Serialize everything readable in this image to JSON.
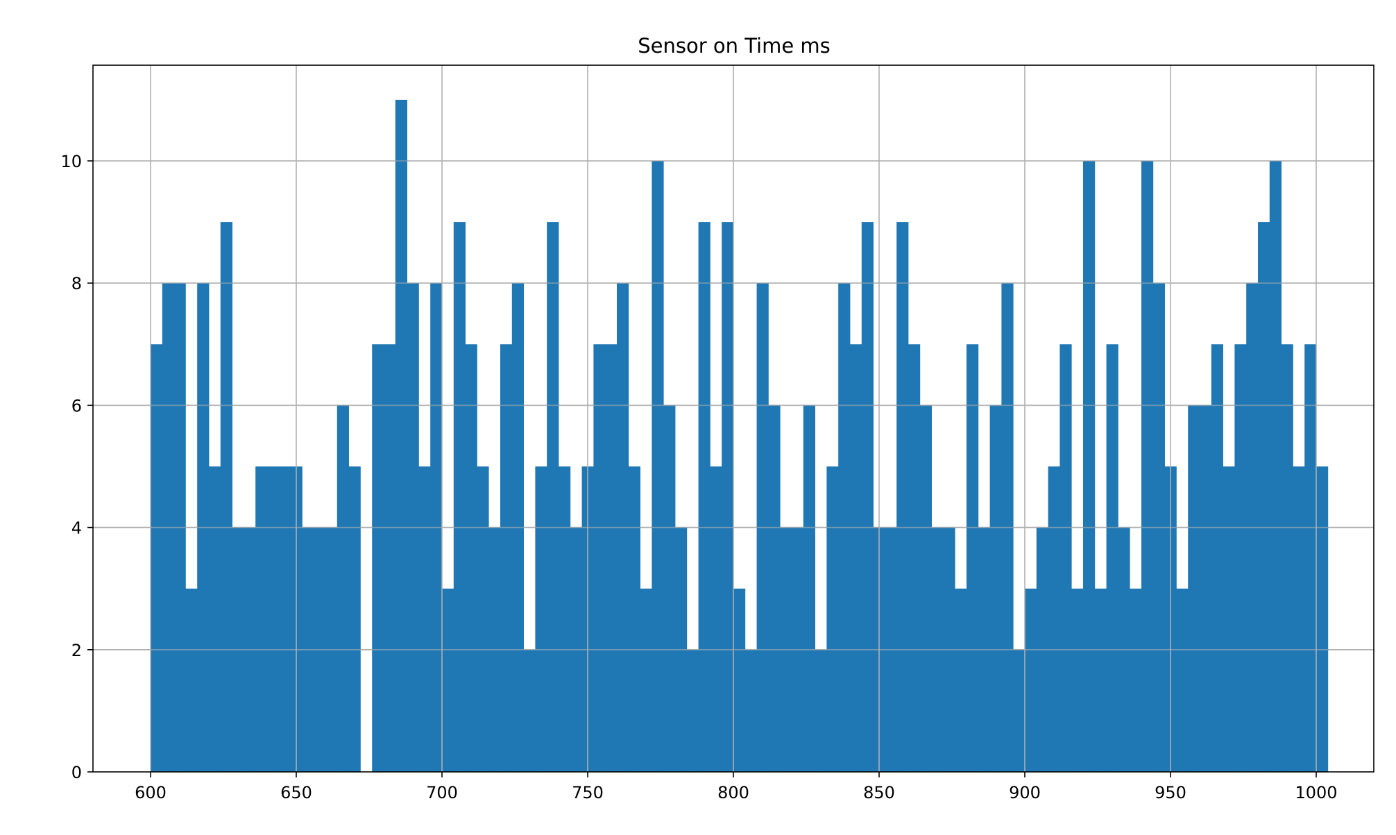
{
  "chart_data": {
    "type": "bar",
    "subtype": "histogram",
    "title": "Sensor on Time ms",
    "xlabel": "",
    "ylabel": "",
    "xlim": [
      580,
      1000
    ],
    "ylim": [
      0,
      11.55
    ],
    "grid": true,
    "bin_start": 600,
    "bin_width": 4,
    "bar_color": "#1f77b4",
    "grid_color": "#b0b0b0",
    "xticks": [
      600,
      650,
      700,
      750,
      800,
      850,
      900,
      950,
      1000
    ],
    "xtick_labels": [
      "600",
      "650",
      "700",
      "750",
      "800",
      "850",
      "900",
      "950",
      "1000"
    ],
    "yticks": [
      0,
      2,
      4,
      6,
      8,
      10
    ],
    "ytick_labels": [
      "0",
      "2",
      "4",
      "6",
      "8",
      "10"
    ],
    "values": [
      7,
      8,
      8,
      3,
      8,
      5,
      9,
      4,
      4,
      5,
      5,
      5,
      5,
      4,
      4,
      4,
      6,
      5,
      0,
      7,
      7,
      11,
      8,
      5,
      8,
      3,
      9,
      7,
      5,
      4,
      7,
      8,
      2,
      5,
      9,
      5,
      4,
      5,
      7,
      7,
      8,
      5,
      3,
      10,
      6,
      4,
      2,
      9,
      5,
      9,
      3,
      2,
      8,
      6,
      4,
      4,
      6,
      2,
      5,
      8,
      7,
      9,
      4,
      4,
      9,
      7,
      6,
      4,
      4,
      3,
      7,
      4,
      6,
      8,
      2,
      3,
      4,
      5,
      7,
      3,
      10,
      3,
      7,
      4,
      3,
      10,
      8,
      5,
      3,
      6,
      6,
      7,
      5,
      7,
      8,
      9,
      10,
      7,
      5,
      7,
      5
    ]
  }
}
